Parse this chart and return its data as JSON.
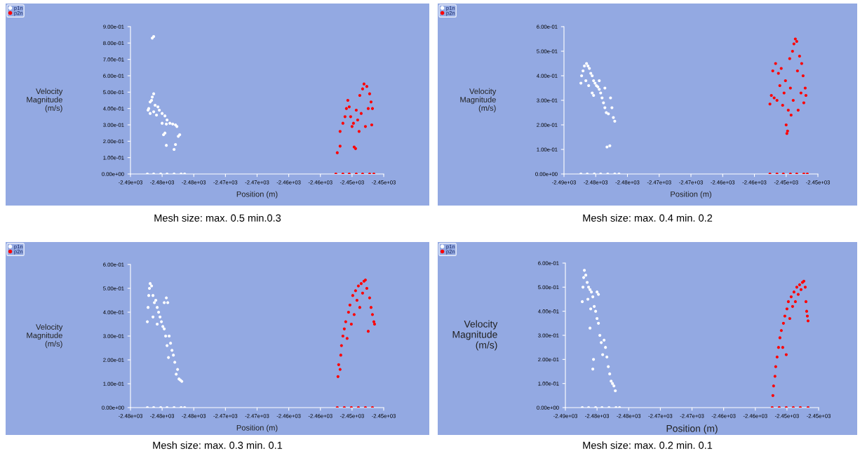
{
  "chart_data": [
    {
      "type": "scatter",
      "xlabel": "Position (m)",
      "ylabel": "Velocity\nMagnitude\n(m/s)",
      "annotations": [
        "Mesh size: max. 0.5 min.0.3"
      ],
      "legend": "top left",
      "marker": "circle",
      "xlim": [
        -2486,
        -2450
      ],
      "ylim": [
        0,
        0.9
      ],
      "xticks": [
        {
          "value": -2486,
          "label": "-2.49e+03"
        },
        {
          "value": -2481.5,
          "label": "-2.48e+03"
        },
        {
          "value": -2477,
          "label": "-2.48e+03"
        },
        {
          "value": -2472.5,
          "label": "-2.47e+03"
        },
        {
          "value": -2468,
          "label": "-2.47e+03"
        },
        {
          "value": -2463.5,
          "label": "-2.46e+03"
        },
        {
          "value": -2459,
          "label": "-2.46e+03"
        },
        {
          "value": -2454.5,
          "label": "-2.45e+03"
        },
        {
          "value": -2450,
          "label": "-2.45e+03"
        }
      ],
      "yticks": [
        {
          "value": 0,
          "label": "0.00e+00"
        },
        {
          "value": 0.1,
          "label": "1.00e-01"
        },
        {
          "value": 0.2,
          "label": "2.00e-01"
        },
        {
          "value": 0.3,
          "label": "3.00e-01"
        },
        {
          "value": 0.4,
          "label": "4.00e-01"
        },
        {
          "value": 0.5,
          "label": "5.00e-01"
        },
        {
          "value": 0.6,
          "label": "6.00e-01"
        },
        {
          "value": 0.7,
          "label": "7.00e-01"
        },
        {
          "value": 0.8,
          "label": "8.00e-01"
        },
        {
          "value": 0.9,
          "label": "9.00e-01"
        }
      ],
      "series": [
        {
          "name": "p1n",
          "color": "#ffffff",
          "x": [
            -2482.9,
            -2482.7,
            -2482.7,
            -2483.4,
            -2483.2,
            -2483.0,
            -2482.9,
            -2482.5,
            -2482.1,
            -2481.9,
            -2481.5,
            -2481.1,
            -2480.8,
            -2480.4,
            -2480.0,
            -2479.6,
            -2479.4,
            -2481.5,
            -2480.9,
            -2481.3,
            -2481.1,
            -2480.9,
            -2479.8,
            -2479.6,
            -2479.2,
            -2479.0,
            -2483.5,
            -2483.2,
            -2482.7,
            -2482.3,
            -2483.6,
            -2482.7,
            -2481.7,
            -2480.8,
            -2479.8,
            -2478.8,
            -2478.3
          ],
          "values": [
            0.83,
            0.84,
            0.49,
            0.4,
            0.44,
            0.45,
            0.47,
            0.42,
            0.41,
            0.39,
            0.37,
            0.355,
            0.33,
            0.31,
            0.305,
            0.3,
            0.29,
            0.31,
            0.305,
            0.24,
            0.25,
            0.175,
            0.15,
            0.18,
            0.23,
            0.24,
            0.39,
            0.37,
            0.38,
            0.36,
            0,
            0,
            0,
            0,
            0,
            0,
            0
          ]
        },
        {
          "name": "p2n",
          "color": "#ff0000",
          "x": [
            -2456.6,
            -2456.2,
            -2456.2,
            -2455.8,
            -2455.5,
            -2455.3,
            -2455.1,
            -2454.9,
            -2454.7,
            -2454.5,
            -2454.3,
            -2454.2,
            -2454.0,
            -2453.9,
            -2453.7,
            -2453.5,
            -2453.4,
            -2453.2,
            -2453.0,
            -2452.8,
            -2452.6,
            -2452.4,
            -2452.2,
            -2452.0,
            -2451.8,
            -2451.7,
            -2451.6,
            -2456.8,
            -2455.8,
            -2454.9,
            -2453.9,
            -2453.0,
            -2452.0,
            -2451.4
          ],
          "values": [
            0.13,
            0.17,
            0.26,
            0.31,
            0.35,
            0.4,
            0.45,
            0.41,
            0.35,
            0.29,
            0.31,
            0.165,
            0.155,
            0.39,
            0.33,
            0.26,
            0.48,
            0.37,
            0.52,
            0.55,
            0.29,
            0.535,
            0.4,
            0.49,
            0.44,
            0.3,
            0.4,
            0,
            0,
            0,
            0,
            0,
            0,
            0
          ]
        }
      ]
    },
    {
      "type": "scatter",
      "xlabel": "Position (m)",
      "ylabel": "Velocity\nMagnitude\n(m/s)",
      "annotations": [
        "Mesh size: max. 0.4 min. 0.2"
      ],
      "legend": "top left",
      "marker": "circle",
      "xlim": [
        -2486,
        -2450
      ],
      "ylim": [
        0,
        0.6
      ],
      "xticks": [
        {
          "value": -2486,
          "label": "-2.49e+03"
        },
        {
          "value": -2481.5,
          "label": "-2.48e+03"
        },
        {
          "value": -2477,
          "label": "-2.48e+03"
        },
        {
          "value": -2472.5,
          "label": "-2.47e+03"
        },
        {
          "value": -2468,
          "label": "-2.47e+03"
        },
        {
          "value": -2463.5,
          "label": "-2.46e+03"
        },
        {
          "value": -2459,
          "label": "-2.46e+03"
        },
        {
          "value": -2454.5,
          "label": "-2.45e+03"
        },
        {
          "value": -2450,
          "label": "-2.45e+03"
        }
      ],
      "yticks": [
        {
          "value": 0,
          "label": "0.00e+00"
        },
        {
          "value": 0.1,
          "label": "1.00e-01"
        },
        {
          "value": 0.2,
          "label": "2.00e-01"
        },
        {
          "value": 0.3,
          "label": "3.00e-01"
        },
        {
          "value": 0.4,
          "label": "4.00e-01"
        },
        {
          "value": 0.5,
          "label": "5.00e-01"
        },
        {
          "value": 0.6,
          "label": "6.00e-01"
        }
      ],
      "series": [
        {
          "name": "p1n",
          "color": "#ffffff",
          "x": [
            -2483.6,
            -2483.5,
            -2483.3,
            -2483.1,
            -2482.8,
            -2482.6,
            -2482.4,
            -2482.2,
            -2482.0,
            -2481.8,
            -2481.6,
            -2481.4,
            -2481.2,
            -2481.0,
            -2480.8,
            -2480.6,
            -2480.4,
            -2480.2,
            -2480.0,
            -2479.7,
            -2479.4,
            -2479.2,
            -2479.0,
            -2478.8,
            -2482.9,
            -2482.5,
            -2482.0,
            -2481.8,
            -2481.0,
            -2480.2,
            -2479.9,
            -2479.5,
            -2483.6,
            -2482.7,
            -2481.7,
            -2480.8,
            -2479.8,
            -2478.8,
            -2478.2
          ],
          "values": [
            0.37,
            0.4,
            0.42,
            0.44,
            0.45,
            0.44,
            0.43,
            0.41,
            0.4,
            0.38,
            0.37,
            0.36,
            0.355,
            0.345,
            0.33,
            0.31,
            0.29,
            0.27,
            0.25,
            0.245,
            0.31,
            0.27,
            0.23,
            0.215,
            0.38,
            0.36,
            0.33,
            0.32,
            0.38,
            0.35,
            0.11,
            0.115,
            0,
            0,
            0,
            0,
            0,
            0,
            0
          ]
        },
        {
          "name": "p2n",
          "color": "#ff0000",
          "x": [
            -2456.8,
            -2456.6,
            -2456.4,
            -2456.2,
            -2456.0,
            -2455.8,
            -2455.6,
            -2455.4,
            -2455.2,
            -2455.0,
            -2454.8,
            -2454.6,
            -2454.5,
            -2454.4,
            -2454.3,
            -2454.2,
            -2454.0,
            -2453.9,
            -2453.8,
            -2453.6,
            -2453.5,
            -2453.4,
            -2453.2,
            -2453.0,
            -2452.9,
            -2452.8,
            -2452.6,
            -2452.4,
            -2452.3,
            -2452.1,
            -2452.0,
            -2451.8,
            -2451.7,
            -2456.8,
            -2455.8,
            -2454.9,
            -2453.9,
            -2453.0,
            -2452.0,
            -2451.5
          ],
          "values": [
            0.285,
            0.32,
            0.42,
            0.31,
            0.45,
            0.3,
            0.41,
            0.36,
            0.43,
            0.28,
            0.33,
            0.38,
            0.2,
            0.165,
            0.175,
            0.26,
            0.47,
            0.35,
            0.24,
            0.5,
            0.3,
            0.53,
            0.55,
            0.54,
            0.42,
            0.26,
            0.48,
            0.33,
            0.45,
            0.4,
            0.29,
            0.35,
            0.32,
            0,
            0,
            0,
            0,
            0,
            0,
            0
          ]
        }
      ]
    },
    {
      "type": "scatter",
      "xlabel": "Position (m)",
      "ylabel": "Velocity\nMagnitude\n(m/s)",
      "annotations": [
        "Mesh size: max. 0.3 min. 0.1"
      ],
      "legend": "top left",
      "marker": "circle",
      "xlim": [
        -2485,
        -2449
      ],
      "ylim": [
        0,
        0.6
      ],
      "xticks": [
        {
          "value": -2485,
          "label": "-2.48e+03"
        },
        {
          "value": -2480.5,
          "label": "-2.48e+03"
        },
        {
          "value": -2476,
          "label": "-2.48e+03"
        },
        {
          "value": -2471.5,
          "label": "-2.47e+03"
        },
        {
          "value": -2467,
          "label": "-2.47e+03"
        },
        {
          "value": -2462.5,
          "label": "-2.46e+03"
        },
        {
          "value": -2458,
          "label": "-2.46e+03"
        },
        {
          "value": -2453.5,
          "label": "-2.45e+03"
        },
        {
          "value": -2449,
          "label": "-2.45e+03"
        }
      ],
      "yticks": [
        {
          "value": 0,
          "label": "0.00e+00"
        },
        {
          "value": 0.1,
          "label": "1.00e-01"
        },
        {
          "value": 0.2,
          "label": "2.00e-01"
        },
        {
          "value": 0.3,
          "label": "3.00e-01"
        },
        {
          "value": 0.4,
          "label": "4.00e-01"
        },
        {
          "value": 0.5,
          "label": "5.00e-01"
        },
        {
          "value": 0.6,
          "label": "6.00e-01"
        }
      ],
      "series": [
        {
          "name": "p1n",
          "color": "#ffffff",
          "x": [
            -2482.6,
            -2482.5,
            -2482.4,
            -2482.3,
            -2482.2,
            -2482.0,
            -2481.8,
            -2481.6,
            -2481.4,
            -2481.2,
            -2481.0,
            -2480.8,
            -2480.6,
            -2480.4,
            -2480.2,
            -2480.2,
            -2479.9,
            -2479.7,
            -2480.0,
            -2479.8,
            -2479.6,
            -2479.5,
            -2479.3,
            -2479.1,
            -2478.9,
            -2478.7,
            -2478.5,
            -2478.3,
            -2478.1,
            -2477.9,
            -2477.7,
            -2481.8,
            -2481.2,
            -2482.6,
            -2481.7,
            -2480.7,
            -2479.8,
            -2478.8,
            -2477.8,
            -2477.3
          ],
          "values": [
            0.36,
            0.42,
            0.47,
            0.5,
            0.52,
            0.51,
            0.47,
            0.44,
            0.45,
            0.42,
            0.4,
            0.38,
            0.36,
            0.34,
            0.33,
            0.44,
            0.46,
            0.44,
            0.3,
            0.26,
            0.21,
            0.3,
            0.27,
            0.24,
            0.22,
            0.19,
            0.14,
            0.16,
            0.12,
            0.115,
            0.11,
            0.38,
            0.35,
            0,
            0,
            0,
            0,
            0,
            0,
            0
          ]
        },
        {
          "name": "p2n",
          "color": "#ff0000",
          "x": [
            -2455.5,
            -2455.4,
            -2455.2,
            -2455.1,
            -2455.0,
            -2454.8,
            -2454.6,
            -2454.4,
            -2454.2,
            -2454.0,
            -2453.8,
            -2453.6,
            -2453.4,
            -2453.2,
            -2453.0,
            -2452.8,
            -2452.6,
            -2452.4,
            -2452.2,
            -2452.0,
            -2451.8,
            -2451.6,
            -2451.4,
            -2451.2,
            -2451.0,
            -2450.8,
            -2450.6,
            -2450.4,
            -2450.3,
            -2455.6,
            -2454.6,
            -2453.6,
            -2452.6,
            -2451.6,
            -2450.6
          ],
          "values": [
            0.13,
            0.18,
            0.16,
            0.22,
            0.26,
            0.3,
            0.33,
            0.36,
            0.29,
            0.4,
            0.43,
            0.35,
            0.47,
            0.39,
            0.49,
            0.45,
            0.51,
            0.42,
            0.52,
            0.48,
            0.53,
            0.535,
            0.5,
            0.32,
            0.46,
            0.42,
            0.39,
            0.36,
            0.35,
            0,
            0,
            0,
            0,
            0,
            0
          ]
        }
      ]
    },
    {
      "type": "scatter",
      "xlabel": "Position (m)",
      "ylabel": "Velocity\nMagnitude\n(m/s)",
      "annotations": [
        "Mesh size: max. 0.2 min. 0.1"
      ],
      "legend": "top left",
      "marker": "circle",
      "xlim": [
        -2486,
        -2450
      ],
      "ylim": [
        0,
        0.6
      ],
      "xticks": [
        {
          "value": -2486,
          "label": "-2.49e+03"
        },
        {
          "value": -2481.5,
          "label": "-2.48e+03"
        },
        {
          "value": -2477,
          "label": "-2.48e+03"
        },
        {
          "value": -2472.5,
          "label": "-2.47e+03"
        },
        {
          "value": -2468,
          "label": "-2.47e+03"
        },
        {
          "value": -2463.5,
          "label": "-2.46e+03"
        },
        {
          "value": -2459,
          "label": "-2.46e+03"
        },
        {
          "value": -2454.5,
          "label": "-2.45e+03"
        },
        {
          "value": -2450,
          "label": "-2.45e+03"
        }
      ],
      "yticks": [
        {
          "value": 0,
          "label": "0.00e+00"
        },
        {
          "value": 0.1,
          "label": "1.00e-01"
        },
        {
          "value": 0.2,
          "label": "2.00e-01"
        },
        {
          "value": 0.3,
          "label": "3.00e-01"
        },
        {
          "value": 0.4,
          "label": "4.00e-01"
        },
        {
          "value": 0.5,
          "label": "5.00e-01"
        },
        {
          "value": 0.6,
          "label": "6.00e-01"
        }
      ],
      "series": [
        {
          "name": "p1n",
          "color": "#ffffff",
          "x": [
            -2483.6,
            -2483.5,
            -2483.4,
            -2483.3,
            -2483.1,
            -2482.9,
            -2482.7,
            -2482.5,
            -2482.3,
            -2482.1,
            -2481.9,
            -2481.7,
            -2481.5,
            -2481.3,
            -2481.5,
            -2481.3,
            -2482.5,
            -2482.0,
            -2482.1,
            -2481.1,
            -2480.9,
            -2480.7,
            -2480.5,
            -2480.3,
            -2480.1,
            -2479.9,
            -2479.7,
            -2479.5,
            -2479.3,
            -2479.1,
            -2478.9,
            -2482.8,
            -2482.4,
            -2483.6,
            -2482.7,
            -2481.7,
            -2480.8,
            -2479.8,
            -2478.8,
            -2478.3
          ],
          "values": [
            0.44,
            0.5,
            0.54,
            0.57,
            0.55,
            0.52,
            0.5,
            0.49,
            0.48,
            0.46,
            0.42,
            0.4,
            0.37,
            0.35,
            0.48,
            0.47,
            0.33,
            0.2,
            0.16,
            0.3,
            0.27,
            0.22,
            0.28,
            0.25,
            0.21,
            0.17,
            0.14,
            0.11,
            0.1,
            0.09,
            0.07,
            0.45,
            0.41,
            0,
            0,
            0,
            0,
            0,
            0,
            0
          ]
        },
        {
          "name": "p2n",
          "color": "#ff0000",
          "x": [
            -2456.5,
            -2456.4,
            -2456.2,
            -2456.1,
            -2455.9,
            -2455.7,
            -2455.5,
            -2455.3,
            -2455.1,
            -2455.0,
            -2454.8,
            -2454.6,
            -2454.5,
            -2454.3,
            -2454.1,
            -2453.9,
            -2453.7,
            -2453.5,
            -2453.3,
            -2453.1,
            -2452.9,
            -2452.7,
            -2452.5,
            -2452.3,
            -2452.1,
            -2451.9,
            -2451.8,
            -2451.7,
            -2451.6,
            -2451.5,
            -2456.6,
            -2455.6,
            -2454.6,
            -2453.6,
            -2452.6,
            -2451.5
          ],
          "values": [
            0.05,
            0.09,
            0.13,
            0.17,
            0.21,
            0.25,
            0.29,
            0.32,
            0.25,
            0.35,
            0.38,
            0.22,
            0.41,
            0.44,
            0.37,
            0.46,
            0.42,
            0.48,
            0.44,
            0.5,
            0.47,
            0.51,
            0.49,
            0.52,
            0.525,
            0.5,
            0.44,
            0.4,
            0.38,
            0.36,
            0,
            0,
            0,
            0,
            0,
            0
          ]
        }
      ]
    }
  ]
}
